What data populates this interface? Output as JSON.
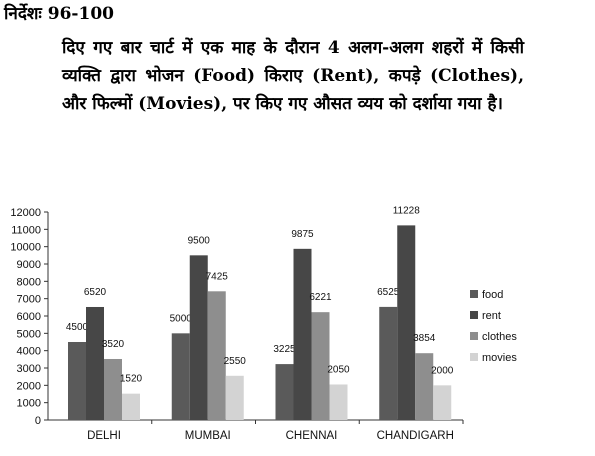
{
  "question": {
    "heading": "निर्देशः 96-100",
    "instruction": "दिए गए बार चार्ट में एक माह के दौरान 4 अलग-अलग शहरों में किसी व्यक्ति द्वारा भोजन (Food) किराए (Rent), कपड़े (Clothes), और फिल्मों (Movies), पर किए गए औसत व्यय को दर्शाया गया है।"
  },
  "chart_data": {
    "type": "bar",
    "categories": [
      "DELHI",
      "MUMBAI",
      "CHENNAI",
      "CHANDIGARH"
    ],
    "series": [
      {
        "name": "food",
        "values": [
          4500,
          5000,
          3225,
          6525
        ],
        "color": "#5a5a5a"
      },
      {
        "name": "rent",
        "values": [
          6520,
          9500,
          9875,
          11228
        ],
        "color": "#474747"
      },
      {
        "name": "clothes",
        "values": [
          3520,
          7425,
          6221,
          3854
        ],
        "color": "#8e8e8e"
      },
      {
        "name": "movies",
        "values": [
          1520,
          2550,
          2050,
          2000
        ],
        "color": "#d3d3d3"
      }
    ],
    "ylim": [
      0,
      12000
    ],
    "yticks": [
      0,
      1000,
      2000,
      3000,
      4000,
      5000,
      6000,
      7000,
      8000,
      9000,
      10000,
      11000,
      12000
    ],
    "legend": "right",
    "grid": false
  }
}
